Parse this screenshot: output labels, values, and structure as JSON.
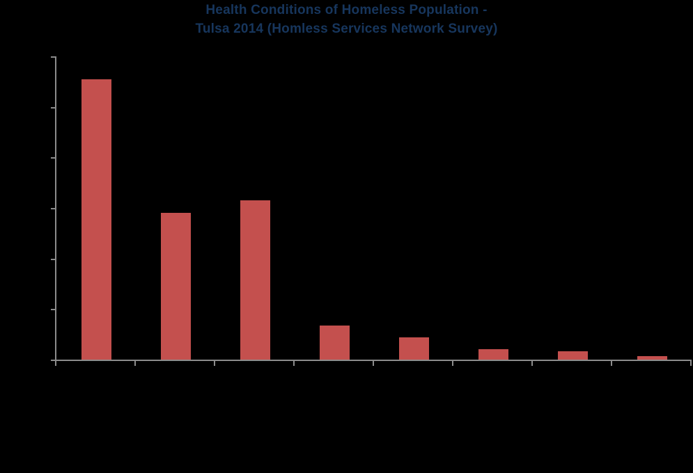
{
  "title": {
    "line1": "Health Conditions of Homeless Population -",
    "line2": "Tulsa 2014 (Homless Services Network Survey)",
    "color": "#17365D"
  },
  "colors": {
    "background": "#000000",
    "bar": "#C4504E",
    "axis": "#8C8C8C"
  },
  "chart_data": {
    "type": "bar",
    "title": "Health Conditions of Homeless Population - Tulsa 2014 (Homless Services Network Survey)",
    "bar_count": 8,
    "categories": [
      "",
      "",
      "",
      "",
      "",
      "",
      "",
      ""
    ],
    "values": [
      5.55,
      2.9,
      3.15,
      0.67,
      0.44,
      0.2,
      0.17,
      0.07
    ],
    "value_units": "y-axis gridline intervals; axis tick labels are not rendered in the image",
    "xlabel": "",
    "ylabel": "",
    "ylim": [
      0,
      6
    ],
    "y_tick_count": 7,
    "x_tick_count": 9,
    "tick_labels_visible": false,
    "category_labels_visible": false,
    "legend": null,
    "grid": false
  }
}
